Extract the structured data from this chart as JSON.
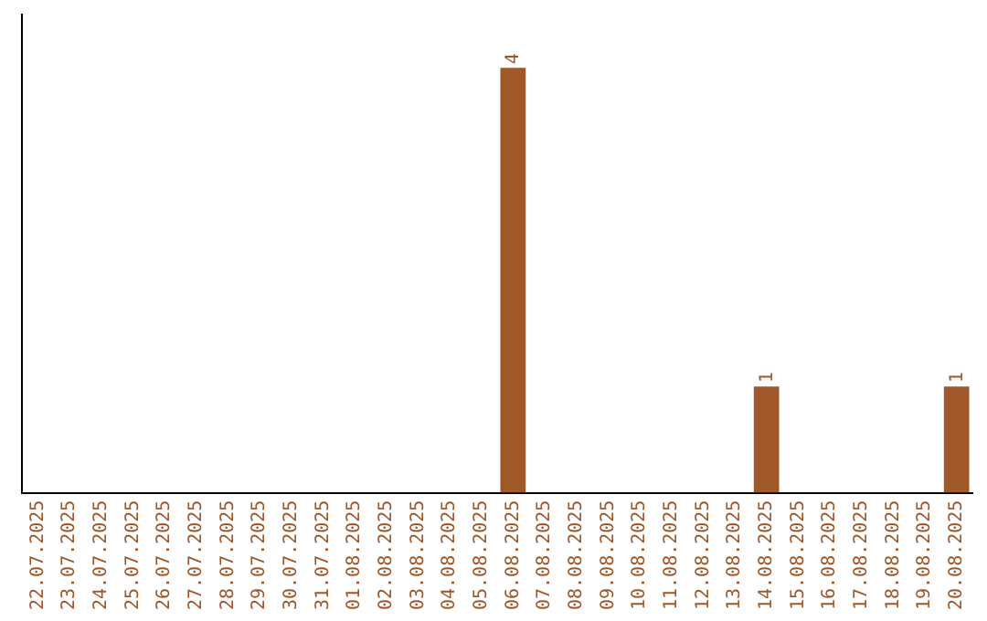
{
  "chart_data": {
    "type": "bar",
    "categories": [
      "22.07.2025",
      "23.07.2025",
      "24.07.2025",
      "25.07.2025",
      "26.07.2025",
      "27.07.2025",
      "28.07.2025",
      "29.07.2025",
      "30.07.2025",
      "31.07.2025",
      "01.08.2025",
      "02.08.2025",
      "03.08.2025",
      "04.08.2025",
      "05.08.2025",
      "06.08.2025",
      "07.08.2025",
      "08.08.2025",
      "09.08.2025",
      "10.08.2025",
      "11.08.2025",
      "12.08.2025",
      "13.08.2025",
      "14.08.2025",
      "15.08.2025",
      "16.08.2025",
      "17.08.2025",
      "18.08.2025",
      "19.08.2025",
      "20.08.2025"
    ],
    "values": [
      null,
      null,
      null,
      null,
      null,
      null,
      null,
      null,
      null,
      null,
      null,
      null,
      null,
      null,
      null,
      4,
      null,
      null,
      null,
      null,
      null,
      null,
      null,
      1,
      null,
      null,
      null,
      null,
      null,
      1
    ],
    "data_labels": true,
    "color": "#a0572a",
    "tick_labels": "x",
    "grid": false,
    "legend": false
  }
}
